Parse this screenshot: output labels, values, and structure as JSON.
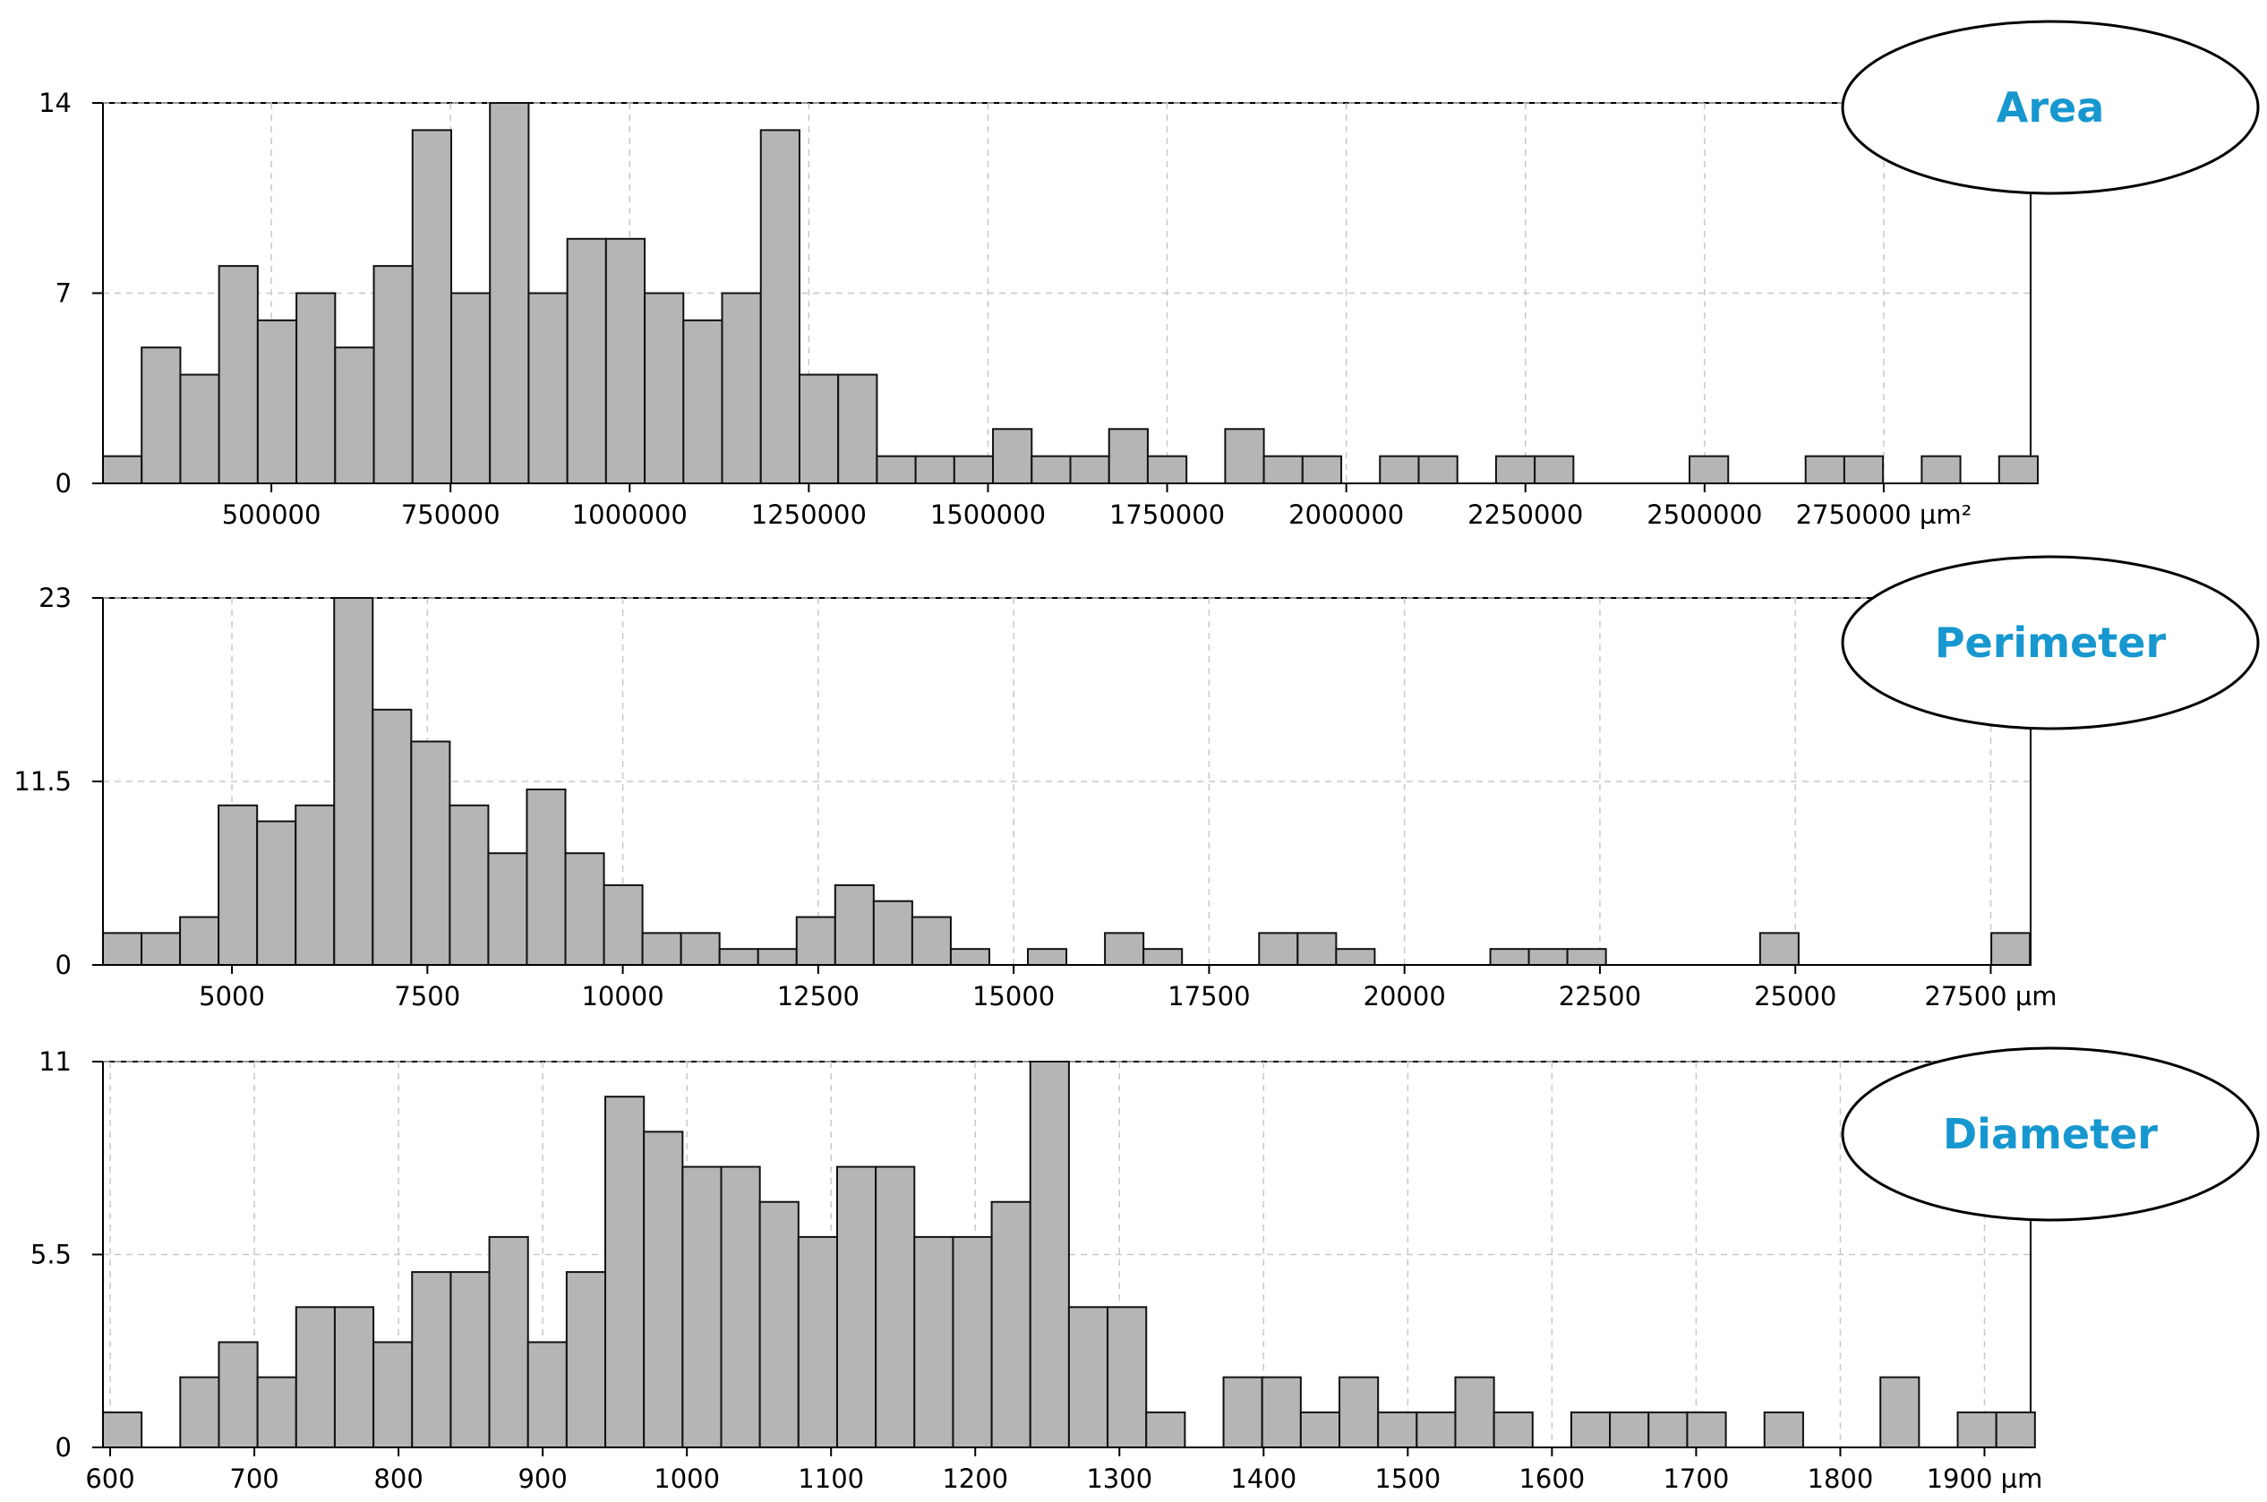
{
  "chart_data": [
    {
      "type": "bar",
      "title": "Area",
      "xlabel": "",
      "ylabel": "",
      "x_unit": "µm²",
      "xlim": [
        265000,
        2955000
      ],
      "ylim": [
        0,
        14
      ],
      "yticks": [
        "0",
        "7",
        "14"
      ],
      "xticks": [
        {
          "value": 500000,
          "label": "500000"
        },
        {
          "value": 750000,
          "label": "750000"
        },
        {
          "value": 1000000,
          "label": "1000000"
        },
        {
          "value": 1250000,
          "label": "1250000"
        },
        {
          "value": 1500000,
          "label": "1500000"
        },
        {
          "value": 1750000,
          "label": "1750000"
        },
        {
          "value": 2000000,
          "label": "2000000"
        },
        {
          "value": 2250000,
          "label": "2250000"
        },
        {
          "value": 2500000,
          "label": "2500000"
        },
        {
          "value": 2750000,
          "label": "2750000 µm²"
        }
      ],
      "bin_width": 54000,
      "bin_starts": [
        265000,
        319000,
        373000,
        427000,
        481000,
        535000,
        589000,
        643000,
        697000,
        751000,
        805000,
        859000,
        913000,
        967000,
        1021000,
        1075000,
        1129000,
        1183000,
        1237000,
        1291000,
        1345000,
        1399000,
        1453000,
        1507000,
        1561000,
        1615000,
        1669000,
        1723000,
        1777000,
        1831000,
        1885000,
        1939000,
        1993000,
        2047000,
        2101000,
        2155000,
        2209000,
        2263000,
        2317000,
        2371000,
        2425000,
        2479000,
        2533000,
        2587000,
        2641000,
        2695000,
        2749000,
        2803000,
        2857000,
        2911000
      ],
      "values": [
        1,
        5,
        4,
        8,
        6,
        7,
        5,
        8,
        13,
        7,
        14,
        7,
        9,
        9,
        7,
        6,
        7,
        13,
        4,
        4,
        1,
        1,
        1,
        2,
        1,
        1,
        2,
        1,
        0,
        2,
        1,
        1,
        0,
        1,
        1,
        0,
        1,
        1,
        0,
        0,
        0,
        1,
        0,
        0,
        1,
        1,
        0,
        1,
        0,
        1
      ],
      "grid": true
    },
    {
      "type": "bar",
      "title": "Perimeter",
      "xlabel": "",
      "ylabel": "",
      "x_unit": "µm",
      "xlim": [
        3350,
        28010
      ],
      "ylim": [
        0,
        23
      ],
      "yticks": [
        "0",
        "11.5",
        "23"
      ],
      "xticks": [
        {
          "value": 5000,
          "label": "5000"
        },
        {
          "value": 7500,
          "label": "7500"
        },
        {
          "value": 10000,
          "label": "10000"
        },
        {
          "value": 12500,
          "label": "12500"
        },
        {
          "value": 15000,
          "label": "15000"
        },
        {
          "value": 17500,
          "label": "17500"
        },
        {
          "value": 20000,
          "label": "20000"
        },
        {
          "value": 22500,
          "label": "22500"
        },
        {
          "value": 25000,
          "label": "25000"
        },
        {
          "value": 27500,
          "label": "27500 µm"
        }
      ],
      "bin_width": 493,
      "bin_starts": [
        3350,
        3843,
        4336,
        4829,
        5322,
        5815,
        6308,
        6801,
        7294,
        7787,
        8280,
        8773,
        9266,
        9759,
        10252,
        10745,
        11238,
        11731,
        12224,
        12717,
        13210,
        13703,
        14196,
        14689,
        15182,
        15675,
        16168,
        16661,
        17154,
        17647,
        18140,
        18633,
        19126,
        19619,
        20112,
        20605,
        21098,
        21591,
        22084,
        22577,
        23070,
        23563,
        24056,
        24549,
        25042,
        25535,
        26028,
        26521,
        27014,
        27507
      ],
      "values": [
        2,
        2,
        3,
        10,
        9,
        10,
        23,
        16,
        14,
        10,
        7,
        11,
        7,
        5,
        2,
        2,
        1,
        1,
        3,
        5,
        4,
        3,
        1,
        0,
        1,
        0,
        2,
        1,
        0,
        0,
        2,
        2,
        1,
        0,
        0,
        0,
        1,
        1,
        1,
        0,
        0,
        0,
        0,
        2,
        0,
        0,
        0,
        0,
        0,
        2
      ],
      "grid": true
    },
    {
      "type": "bar",
      "title": "Diameter",
      "xlabel": "",
      "ylabel": "",
      "x_unit": "µm",
      "xlim": [
        595,
        1932
      ],
      "ylim": [
        0,
        11
      ],
      "yticks": [
        "0",
        "5.5",
        "11"
      ],
      "xticks": [
        {
          "value": 600,
          "label": "600"
        },
        {
          "value": 700,
          "label": "700"
        },
        {
          "value": 800,
          "label": "800"
        },
        {
          "value": 900,
          "label": "900"
        },
        {
          "value": 1000,
          "label": "1000"
        },
        {
          "value": 1100,
          "label": "1100"
        },
        {
          "value": 1200,
          "label": "1200"
        },
        {
          "value": 1300,
          "label": "1300"
        },
        {
          "value": 1400,
          "label": "1400"
        },
        {
          "value": 1500,
          "label": "1500"
        },
        {
          "value": 1600,
          "label": "1600"
        },
        {
          "value": 1700,
          "label": "1700"
        },
        {
          "value": 1800,
          "label": "1800"
        },
        {
          "value": 1900,
          "label": "1900 µm"
        }
      ],
      "bin_width": 26.8,
      "bin_starts": [
        595,
        621.8,
        648.6,
        675.4,
        702.2,
        729,
        755.8,
        782.6,
        809.4,
        836.2,
        863,
        889.8,
        916.6,
        943.4,
        970.2,
        997,
        1023.8,
        1050.6,
        1077.4,
        1104.2,
        1131,
        1157.8,
        1184.6,
        1211.4,
        1238.2,
        1265,
        1291.8,
        1318.6,
        1345.4,
        1372.2,
        1399,
        1425.8,
        1452.6,
        1479.4,
        1506.2,
        1533,
        1559.8,
        1586.6,
        1613.4,
        1640.2,
        1667,
        1693.8,
        1720.6,
        1747.4,
        1774.2,
        1801,
        1827.8,
        1854.6,
        1881.4,
        1908.2
      ],
      "values": [
        1,
        0,
        2,
        3,
        2,
        4,
        4,
        3,
        5,
        5,
        6,
        3,
        5,
        10,
        9,
        8,
        8,
        7,
        6,
        8,
        8,
        6,
        6,
        7,
        11,
        4,
        4,
        1,
        0,
        2,
        2,
        1,
        2,
        1,
        1,
        2,
        1,
        0,
        1,
        1,
        1,
        1,
        0,
        1,
        0,
        0,
        2,
        0,
        1,
        1
      ],
      "grid": true
    }
  ],
  "styles": {
    "bar_fill": "#b5b5b5",
    "bar_stroke": "#111111",
    "grid_color": "#c8c8c8",
    "badge_text_color": "#1797cf",
    "badge_border_color": "#000000"
  }
}
